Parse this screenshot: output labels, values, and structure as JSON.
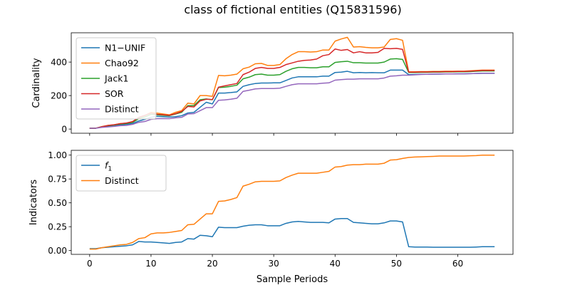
{
  "figure": {
    "title": "class of fictional entities (Q15831596)",
    "xlabel": "Sample Periods"
  },
  "chart_data": [
    {
      "type": "line",
      "ylabel": "Cardinality",
      "xlim": [
        -3,
        69
      ],
      "ylim": [
        -25,
        575
      ],
      "xticks": [
        0,
        10,
        20,
        30,
        40,
        50,
        60
      ],
      "yticks": [
        0,
        200,
        400
      ],
      "show_xtick_labels": false,
      "legend_position": "upper-left",
      "series": [
        {
          "name": "N1−UNIF",
          "color": "#1f77b4",
          "x": [
            0,
            1,
            2,
            3,
            4,
            5,
            6,
            7,
            8,
            9,
            10,
            11,
            12,
            13,
            14,
            15,
            16,
            17,
            18,
            19,
            20,
            21,
            22,
            23,
            24,
            25,
            26,
            27,
            28,
            29,
            30,
            31,
            32,
            33,
            34,
            35,
            36,
            37,
            38,
            39,
            40,
            41,
            42,
            43,
            44,
            45,
            46,
            47,
            48,
            49,
            50,
            51,
            52,
            53,
            54,
            55,
            56,
            57,
            58,
            59,
            60,
            61,
            62,
            63,
            64,
            65,
            66
          ],
          "y": [
            5,
            5,
            12,
            17,
            22,
            25,
            28,
            33,
            48,
            58,
            70,
            76,
            74,
            72,
            74,
            80,
            96,
            100,
            130,
            160,
            150,
            215,
            215,
            218,
            222,
            255,
            265,
            272,
            275,
            275,
            276,
            276,
            290,
            305,
            312,
            312,
            312,
            312,
            316,
            316,
            338,
            340,
            345,
            336,
            338,
            336,
            337,
            336,
            336,
            352,
            352,
            352,
            325,
            326,
            327,
            327,
            328,
            328,
            329,
            329,
            330,
            330,
            331,
            332,
            333,
            333,
            333
          ]
        },
        {
          "name": "Chao92",
          "color": "#ff7f0e",
          "x": [
            0,
            1,
            2,
            3,
            4,
            5,
            6,
            7,
            8,
            9,
            10,
            11,
            12,
            13,
            14,
            15,
            16,
            17,
            18,
            19,
            20,
            21,
            22,
            23,
            24,
            25,
            26,
            27,
            28,
            29,
            30,
            31,
            32,
            33,
            34,
            35,
            36,
            37,
            38,
            39,
            40,
            41,
            42,
            43,
            44,
            45,
            46,
            47,
            48,
            49,
            50,
            51,
            52,
            53,
            54,
            55,
            56,
            57,
            58,
            59,
            60,
            61,
            62,
            63,
            64,
            65,
            66
          ],
          "y": [
            5,
            5,
            15,
            22,
            25,
            33,
            35,
            45,
            68,
            80,
            100,
            95,
            90,
            85,
            100,
            110,
            155,
            150,
            200,
            200,
            195,
            320,
            318,
            322,
            328,
            360,
            370,
            390,
            392,
            380,
            380,
            385,
            420,
            445,
            462,
            462,
            460,
            462,
            472,
            472,
            525,
            538,
            548,
            490,
            492,
            488,
            485,
            485,
            490,
            535,
            540,
            530,
            342,
            342,
            343,
            343,
            344,
            344,
            345,
            345,
            346,
            346,
            348,
            350,
            352,
            352,
            352
          ]
        },
        {
          "name": "Jack1",
          "color": "#2ca02c",
          "x": [
            0,
            1,
            2,
            3,
            4,
            5,
            6,
            7,
            8,
            9,
            10,
            11,
            12,
            13,
            14,
            15,
            16,
            17,
            18,
            19,
            20,
            21,
            22,
            23,
            24,
            25,
            26,
            27,
            28,
            29,
            30,
            31,
            32,
            33,
            34,
            35,
            36,
            37,
            38,
            39,
            40,
            41,
            42,
            43,
            44,
            45,
            46,
            47,
            48,
            49,
            50,
            51,
            52,
            53,
            54,
            55,
            56,
            57,
            58,
            59,
            60,
            61,
            62,
            63,
            64,
            65,
            66
          ],
          "y": [
            5,
            5,
            14,
            20,
            24,
            30,
            33,
            40,
            62,
            72,
            88,
            85,
            82,
            80,
            90,
            100,
            140,
            140,
            175,
            180,
            175,
            248,
            250,
            255,
            262,
            300,
            310,
            325,
            328,
            322,
            322,
            325,
            345,
            360,
            368,
            368,
            366,
            366,
            372,
            372,
            398,
            402,
            405,
            396,
            396,
            394,
            394,
            394,
            400,
            418,
            420,
            416,
            338,
            338,
            339,
            339,
            340,
            340,
            341,
            341,
            342,
            342,
            343,
            345,
            347,
            347,
            347
          ]
        },
        {
          "name": "SOR",
          "color": "#d62728",
          "x": [
            0,
            1,
            2,
            3,
            4,
            5,
            6,
            7,
            8,
            9,
            10,
            11,
            12,
            13,
            14,
            15,
            16,
            17,
            18,
            19,
            20,
            21,
            22,
            23,
            24,
            25,
            26,
            27,
            28,
            29,
            30,
            31,
            32,
            33,
            34,
            35,
            36,
            37,
            38,
            39,
            40,
            41,
            42,
            43,
            44,
            45,
            46,
            47,
            48,
            49,
            50,
            51,
            52,
            53,
            54,
            55,
            56,
            57,
            58,
            59,
            60,
            61,
            62,
            63,
            64,
            65,
            66
          ],
          "y": [
            5,
            5,
            14,
            22,
            26,
            32,
            36,
            44,
            70,
            82,
            95,
            88,
            85,
            82,
            92,
            105,
            135,
            132,
            168,
            178,
            176,
            250,
            258,
            265,
            272,
            325,
            340,
            362,
            368,
            362,
            362,
            368,
            385,
            395,
            405,
            410,
            412,
            418,
            438,
            445,
            478,
            470,
            475,
            455,
            462,
            455,
            455,
            458,
            482,
            480,
            482,
            476,
            340,
            340,
            341,
            341,
            342,
            342,
            343,
            343,
            344,
            344,
            346,
            348,
            350,
            350,
            350
          ]
        },
        {
          "name": "Distinct",
          "color": "#9467bd",
          "x": [
            0,
            1,
            2,
            3,
            4,
            5,
            6,
            7,
            8,
            9,
            10,
            11,
            12,
            13,
            14,
            15,
            16,
            17,
            18,
            19,
            20,
            21,
            22,
            23,
            24,
            25,
            26,
            27,
            28,
            29,
            30,
            31,
            32,
            33,
            34,
            35,
            36,
            37,
            38,
            39,
            40,
            41,
            42,
            43,
            44,
            45,
            46,
            47,
            48,
            49,
            50,
            51,
            52,
            53,
            54,
            55,
            56,
            57,
            58,
            59,
            60,
            61,
            62,
            63,
            64,
            65,
            66
          ],
          "y": [
            5,
            5,
            10,
            13,
            16,
            20,
            22,
            28,
            40,
            45,
            58,
            62,
            62,
            62,
            67,
            70,
            90,
            92,
            110,
            128,
            128,
            172,
            174,
            178,
            184,
            225,
            232,
            240,
            242,
            242,
            242,
            244,
            255,
            265,
            270,
            270,
            270,
            270,
            274,
            276,
            292,
            295,
            298,
            298,
            300,
            300,
            300,
            300,
            305,
            316,
            318,
            322,
            322,
            324,
            326,
            327,
            328,
            329,
            329,
            329,
            330,
            330,
            331,
            332,
            333,
            333,
            333
          ]
        }
      ]
    },
    {
      "type": "line",
      "ylabel": "Indicators",
      "xlim": [
        -3,
        69
      ],
      "ylim": [
        -0.04,
        1.05
      ],
      "xticks": [
        0,
        10,
        20,
        30,
        40,
        50,
        60
      ],
      "yticks": [
        0.0,
        0.25,
        0.5,
        0.75,
        1.0
      ],
      "ytick_labels": [
        "0.00",
        "0.25",
        "0.50",
        "0.75",
        "1.00"
      ],
      "show_xtick_labels": true,
      "legend_position": "upper-left",
      "series": [
        {
          "name": "f1",
          "color": "#1f77b4",
          "x": [
            0,
            1,
            2,
            3,
            4,
            5,
            6,
            7,
            8,
            9,
            10,
            11,
            12,
            13,
            14,
            15,
            16,
            17,
            18,
            19,
            20,
            21,
            22,
            23,
            24,
            25,
            26,
            27,
            28,
            29,
            30,
            31,
            32,
            33,
            34,
            35,
            36,
            37,
            38,
            39,
            40,
            41,
            42,
            43,
            44,
            45,
            46,
            47,
            48,
            49,
            50,
            51,
            52,
            53,
            54,
            55,
            56,
            57,
            58,
            59,
            60,
            61,
            62,
            63,
            64,
            65,
            66
          ],
          "y": [
            0.02,
            0.02,
            0.03,
            0.035,
            0.04,
            0.045,
            0.05,
            0.06,
            0.095,
            0.09,
            0.09,
            0.085,
            0.08,
            0.075,
            0.085,
            0.09,
            0.125,
            0.12,
            0.16,
            0.155,
            0.145,
            0.245,
            0.24,
            0.24,
            0.24,
            0.255,
            0.265,
            0.27,
            0.27,
            0.26,
            0.26,
            0.26,
            0.285,
            0.3,
            0.305,
            0.3,
            0.295,
            0.295,
            0.295,
            0.29,
            0.33,
            0.335,
            0.335,
            0.295,
            0.29,
            0.285,
            0.28,
            0.28,
            0.29,
            0.31,
            0.31,
            0.3,
            0.04,
            0.037,
            0.037,
            0.037,
            0.035,
            0.035,
            0.035,
            0.035,
            0.035,
            0.035,
            0.035,
            0.037,
            0.04,
            0.04,
            0.04
          ]
        },
        {
          "name": "Distinct",
          "color": "#ff7f0e",
          "x": [
            0,
            1,
            2,
            3,
            4,
            5,
            6,
            7,
            8,
            9,
            10,
            11,
            12,
            13,
            14,
            15,
            16,
            17,
            18,
            19,
            20,
            21,
            22,
            23,
            24,
            25,
            26,
            27,
            28,
            29,
            30,
            31,
            32,
            33,
            34,
            35,
            36,
            37,
            38,
            39,
            40,
            41,
            42,
            43,
            44,
            45,
            46,
            47,
            48,
            49,
            50,
            51,
            52,
            53,
            54,
            55,
            56,
            57,
            58,
            59,
            60,
            61,
            62,
            63,
            64,
            65,
            66
          ],
          "y": [
            0.015,
            0.015,
            0.03,
            0.04,
            0.05,
            0.06,
            0.065,
            0.085,
            0.125,
            0.135,
            0.175,
            0.185,
            0.185,
            0.19,
            0.2,
            0.21,
            0.27,
            0.275,
            0.33,
            0.385,
            0.385,
            0.515,
            0.52,
            0.535,
            0.555,
            0.675,
            0.695,
            0.72,
            0.725,
            0.725,
            0.725,
            0.73,
            0.765,
            0.79,
            0.81,
            0.81,
            0.81,
            0.81,
            0.82,
            0.83,
            0.875,
            0.88,
            0.895,
            0.9,
            0.9,
            0.905,
            0.905,
            0.905,
            0.915,
            0.948,
            0.952,
            0.965,
            0.975,
            0.98,
            0.982,
            0.985,
            0.987,
            0.99,
            0.99,
            0.99,
            0.99,
            0.99,
            0.993,
            0.995,
            1.0,
            1.0,
            1.0
          ]
        }
      ]
    }
  ]
}
